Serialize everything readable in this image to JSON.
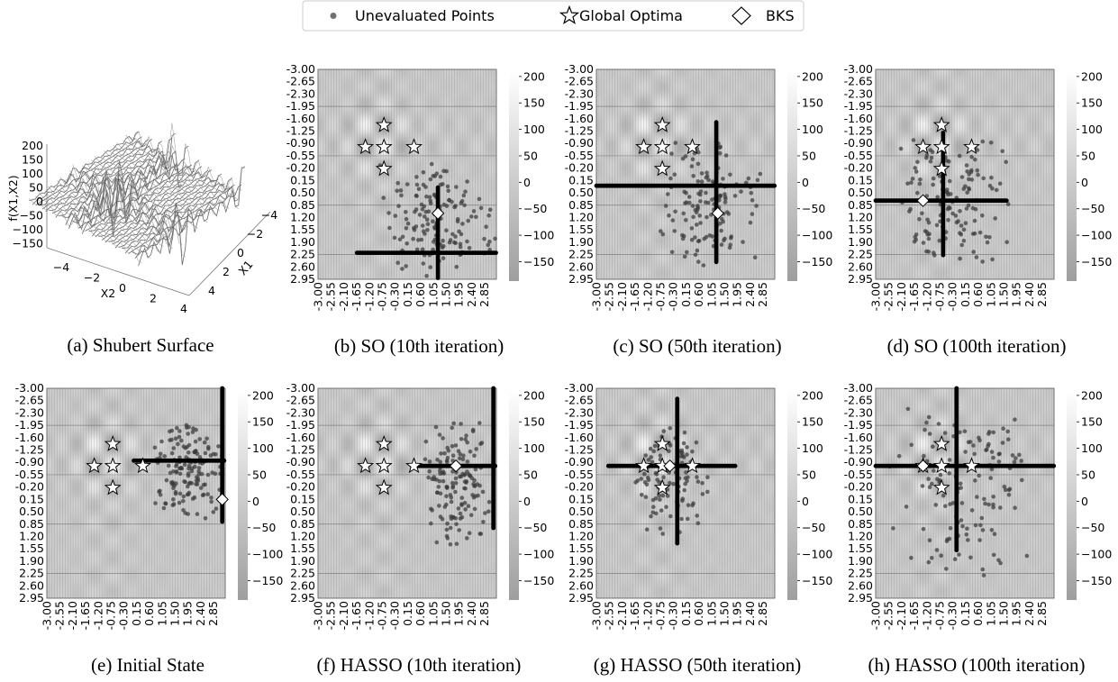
{
  "legend": {
    "items": [
      {
        "label": "Unevaluated Points",
        "marker": "dot",
        "color": "#707070"
      },
      {
        "label": "Global Optima",
        "marker": "star",
        "color": "#ffffff"
      },
      {
        "label": "BKS",
        "marker": "diamond",
        "color": "#ffffff"
      }
    ]
  },
  "surface": {
    "caption": "(a) Shubert Surface",
    "zlabel": "f(X1,X2)",
    "xlabel": "X2",
    "ylabel": "X1",
    "zticks": [
      "200",
      "150",
      "100",
      "50",
      "0",
      "−50",
      "−100",
      "−150"
    ],
    "x2ticks": [
      "−4",
      "−2",
      "0",
      "2",
      "4"
    ],
    "x1ticks": [
      "4",
      "2",
      "0",
      "−2",
      "−4"
    ]
  },
  "axis_ticks": [
    "-3.00",
    "-2.65",
    "-2.30",
    "-1.95",
    "-1.60",
    "-1.25",
    "-0.90",
    "-0.55",
    "-0.20",
    "0.15",
    "0.50",
    "0.85",
    "1.20",
    "1.55",
    "1.90",
    "2.25",
    "2.60",
    "2.95"
  ],
  "x_ticks": [
    "-3.00",
    "-2.55",
    "-2.10",
    "-1.65",
    "-1.20",
    "-0.75",
    "-0.30",
    "0.15",
    "0.60",
    "1.05",
    "1.50",
    "1.95",
    "2.40",
    "2.85"
  ],
  "colorbar_ticks": [
    "200",
    "150",
    "100",
    "50",
    "0",
    "−50",
    "−100",
    "−150"
  ],
  "chart_data": [
    {
      "type": "scatter",
      "caption": "(b) SO (10th iteration)",
      "xlim": [
        -3.0,
        2.95
      ],
      "ylim": [
        -3.0,
        2.95
      ],
      "y_inverted": true,
      "colorbar": {
        "min": -186.7,
        "max": 210
      },
      "global_optima": [
        [
          -0.8,
          -1.42
        ],
        [
          -1.42,
          -0.8
        ],
        [
          -0.8,
          -0.8
        ],
        [
          0.2,
          -0.8
        ],
        [
          -0.8,
          -0.18
        ]
      ],
      "bks": [
        1.0,
        1.08
      ],
      "cross": {
        "cx": 1.0,
        "cy": 2.2,
        "x_from": -1.7,
        "x_to": 2.95,
        "y_from": 0.35,
        "y_to": 2.95
      },
      "cloud": {
        "n": 150,
        "x_range": [
          -1.2,
          2.95
        ],
        "y_range": [
          -0.4,
          2.95
        ],
        "seed": 11
      }
    },
    {
      "type": "scatter",
      "caption": "(c) SO (50th iteration)",
      "xlim": [
        -3.0,
        2.95
      ],
      "ylim": [
        -3.0,
        2.95
      ],
      "y_inverted": true,
      "colorbar": {
        "min": -186.7,
        "max": 210
      },
      "global_optima": [
        [
          -0.8,
          -1.42
        ],
        [
          -1.42,
          -0.8
        ],
        [
          -0.8,
          -0.8
        ],
        [
          0.2,
          -0.8
        ],
        [
          -0.8,
          -0.18
        ]
      ],
      "bks": [
        1.05,
        1.08
      ],
      "cross": {
        "cx": 1.0,
        "cy": 0.3,
        "x_from": -3.0,
        "x_to": 2.95,
        "y_from": -1.5,
        "y_to": 2.5
      },
      "cloud": {
        "n": 140,
        "x_range": [
          -0.9,
          2.6
        ],
        "y_range": [
          -1.1,
          2.7
        ],
        "seed": 23
      }
    },
    {
      "type": "scatter",
      "caption": "(d) SO (100th iteration)",
      "xlim": [
        -3.0,
        2.95
      ],
      "ylim": [
        -3.0,
        2.95
      ],
      "y_inverted": true,
      "colorbar": {
        "min": -186.7,
        "max": 210
      },
      "global_optima": [
        [
          -0.8,
          -1.42
        ],
        [
          -1.42,
          -0.8
        ],
        [
          -0.8,
          -0.8
        ],
        [
          0.2,
          -0.8
        ],
        [
          -0.8,
          -0.18
        ]
      ],
      "bks": [
        -1.42,
        0.72
      ],
      "cross": {
        "cx": -0.75,
        "cy": 0.72,
        "x_from": -3.0,
        "x_to": 1.4,
        "y_from": -1.2,
        "y_to": 2.3
      },
      "cloud": {
        "n": 140,
        "x_range": [
          -2.4,
          1.7
        ],
        "y_range": [
          -1.3,
          2.6
        ],
        "seed": 37
      }
    },
    {
      "type": "scatter",
      "caption": "(e) Initial State",
      "xlim": [
        -3.0,
        2.95
      ],
      "ylim": [
        -3.0,
        2.95
      ],
      "y_inverted": true,
      "colorbar": {
        "min": -186.7,
        "max": 210
      },
      "global_optima": [
        [
          -0.8,
          -1.42
        ],
        [
          -1.42,
          -0.8
        ],
        [
          -0.8,
          -0.8
        ],
        [
          0.2,
          -0.8
        ],
        [
          -0.8,
          -0.18
        ]
      ],
      "bks": [
        2.85,
        0.15
      ],
      "cross": {
        "cx": 2.85,
        "cy": -0.95,
        "x_from": -0.1,
        "x_to": 2.95,
        "y_from": -3.0,
        "y_to": 0.8
      },
      "cloud": {
        "n": 150,
        "x_range": [
          0.4,
          2.95
        ],
        "y_range": [
          -2.1,
          0.9
        ],
        "seed": 51
      }
    },
    {
      "type": "scatter",
      "caption": "(f) HASSO (10th iteration)",
      "xlim": [
        -3.0,
        2.95
      ],
      "ylim": [
        -3.0,
        2.95
      ],
      "y_inverted": true,
      "colorbar": {
        "min": -186.7,
        "max": 210
      },
      "global_optima": [
        [
          -0.8,
          -1.42
        ],
        [
          -1.42,
          -0.8
        ],
        [
          -0.8,
          -0.8
        ],
        [
          0.2,
          -0.8
        ],
        [
          -0.8,
          -0.18
        ]
      ],
      "bks": [
        1.6,
        -0.8
      ],
      "cross": {
        "cx": 2.85,
        "cy": -0.8,
        "x_from": 0.3,
        "x_to": 2.95,
        "y_from": -3.0,
        "y_to": 1.0
      },
      "cloud": {
        "n": 150,
        "x_range": [
          0.4,
          2.95
        ],
        "y_range": [
          -2.1,
          1.6
        ],
        "seed": 67
      }
    },
    {
      "type": "scatter",
      "caption": "(g) HASSO (50th iteration)",
      "xlim": [
        -3.0,
        2.95
      ],
      "ylim": [
        -3.0,
        2.95
      ],
      "y_inverted": true,
      "colorbar": {
        "min": -186.7,
        "max": 210
      },
      "global_optima": [
        [
          -0.8,
          -1.42
        ],
        [
          -1.42,
          -0.8
        ],
        [
          -0.8,
          -0.8
        ],
        [
          0.2,
          -0.8
        ],
        [
          -0.8,
          -0.18
        ]
      ],
      "bks": [
        -0.55,
        -0.8
      ],
      "cross": {
        "cx": -0.3,
        "cy": -0.8,
        "x_from": -2.6,
        "x_to": 1.65,
        "y_from": -2.7,
        "y_to": 1.4
      },
      "cloud": {
        "n": 110,
        "x_range": [
          -1.9,
          0.9
        ],
        "y_range": [
          -2.0,
          1.4
        ],
        "seed": 79
      }
    },
    {
      "type": "scatter",
      "caption": "(h) HASSO (100th iteration)",
      "xlim": [
        -3.0,
        2.95
      ],
      "ylim": [
        -3.0,
        2.95
      ],
      "y_inverted": true,
      "colorbar": {
        "min": -186.7,
        "max": 210
      },
      "global_optima": [
        [
          -0.8,
          -1.42
        ],
        [
          -1.42,
          -0.8
        ],
        [
          -0.8,
          -0.8
        ],
        [
          0.2,
          -0.8
        ],
        [
          -0.8,
          -0.18
        ]
      ],
      "bks": [
        -1.42,
        -0.8
      ],
      "cross": {
        "cx": -0.3,
        "cy": -0.8,
        "x_from": -3.0,
        "x_to": 2.95,
        "y_from": -3.0,
        "y_to": 1.6
      },
      "cloud": {
        "n": 130,
        "x_range": [
          -2.6,
          2.2
        ],
        "y_range": [
          -2.6,
          2.6
        ],
        "seed": 97
      }
    }
  ]
}
